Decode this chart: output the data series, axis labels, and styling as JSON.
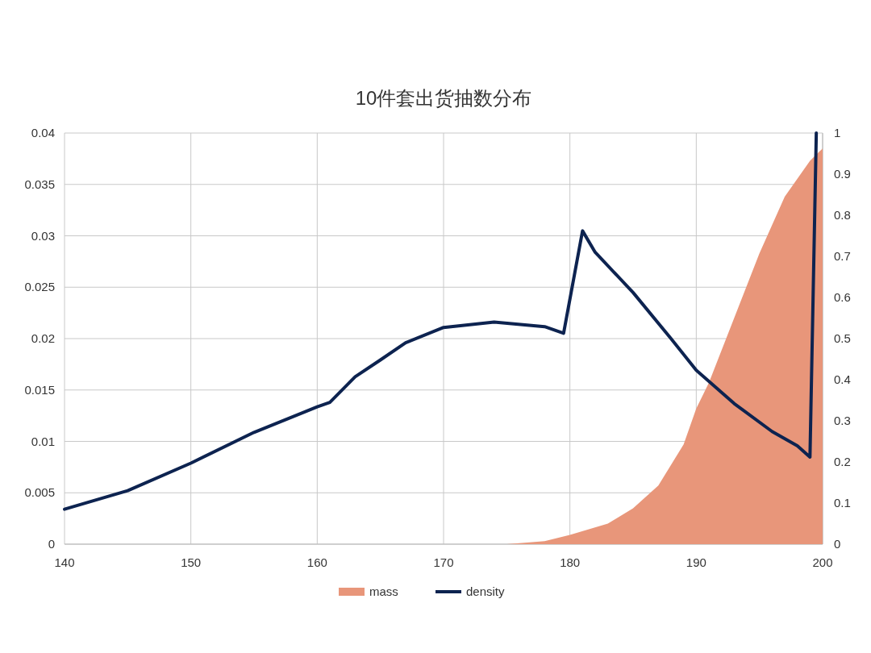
{
  "chart_data": {
    "type": "line",
    "title": "10件套出货抽数分布",
    "xlim": [
      140,
      200
    ],
    "xticks": [
      140,
      150,
      160,
      170,
      180,
      190,
      200
    ],
    "ylim": [
      0,
      0.04
    ],
    "yticks": [
      0,
      0.005,
      0.01,
      0.015,
      0.02,
      0.025,
      0.03,
      0.035,
      0.04
    ],
    "y2lim": [
      0,
      1
    ],
    "y2ticks": [
      0,
      0.1,
      0.2,
      0.3,
      0.4,
      0.5,
      0.6,
      0.7,
      0.8,
      0.9,
      1
    ],
    "grid": true,
    "legend": "bottom",
    "series": [
      {
        "name": "mass",
        "type": "area",
        "color": "#e8967a",
        "x": [
          175,
          178,
          180,
          183,
          185,
          187,
          189,
          190,
          191,
          193,
          195,
          197,
          199,
          200
        ],
        "values": [
          0,
          0.0003,
          0.0009,
          0.002,
          0.0035,
          0.0057,
          0.0097,
          0.0132,
          0.0157,
          0.022,
          0.0283,
          0.0338,
          0.0373,
          0.0385
        ]
      },
      {
        "name": "density",
        "axis": "y2",
        "color": "#0d2350",
        "x": [
          140,
          145,
          150,
          155,
          160,
          161,
          163,
          165,
          167,
          170,
          174,
          178,
          179.5,
          181,
          182,
          185,
          188,
          190,
          193,
          196,
          198,
          199,
          199.5
        ],
        "values": [
          0.085,
          0.13,
          0.197,
          0.272,
          0.334,
          0.345,
          0.407,
          0.448,
          0.49,
          0.527,
          0.54,
          0.529,
          0.513,
          0.762,
          0.71,
          0.612,
          0.5,
          0.423,
          0.342,
          0.274,
          0.239,
          0.212,
          1
        ]
      }
    ]
  }
}
